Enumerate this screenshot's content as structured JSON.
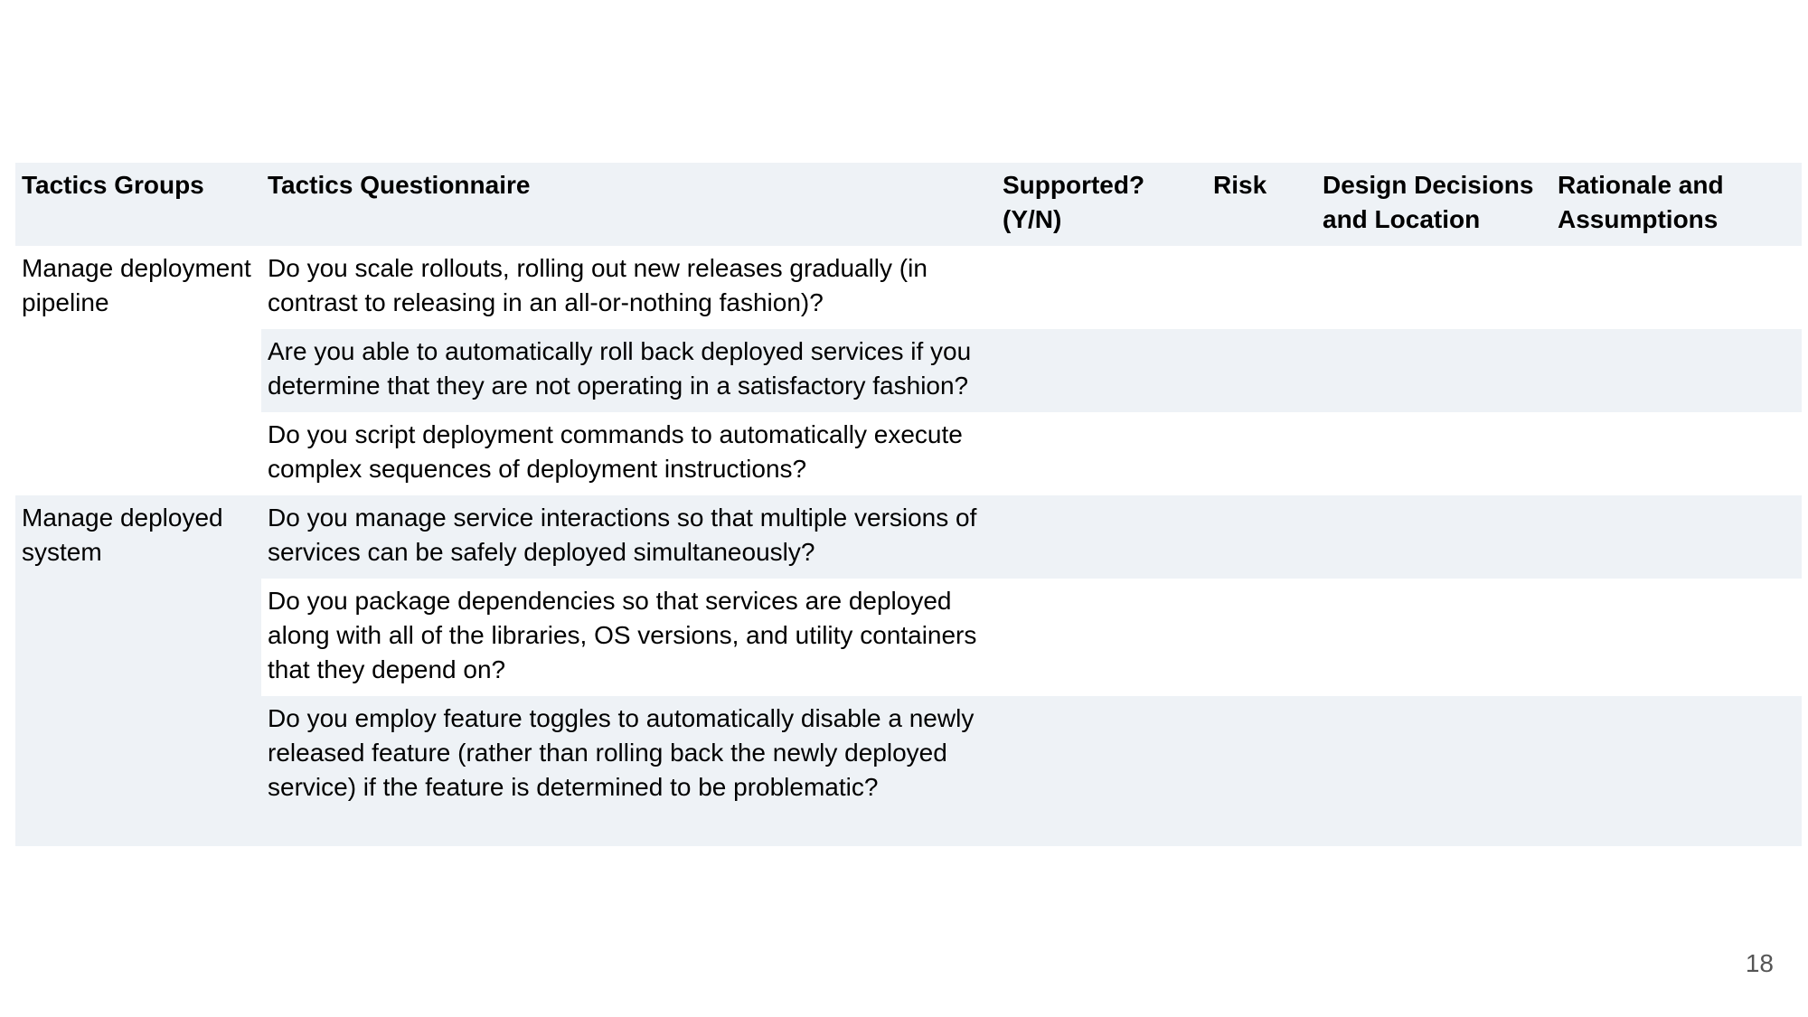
{
  "table": {
    "headers": [
      "Tactics Groups",
      "Tactics Questionnaire",
      "Supported? (Y/N)",
      "Risk",
      "Design Decisions and Location",
      "Rationale and Assumptions"
    ],
    "groups": [
      {
        "name": "Manage deployment pipeline",
        "questions": [
          "Do you scale rollouts, rolling out new releases gradually (in contrast to releasing in an all-or-nothing fashion)?",
          "Are you able to automatically roll back deployed services if you determine that they are not operating in a satisfactory fashion?",
          "Do you script deployment commands to automatically execute complex sequences of deployment instructions?"
        ]
      },
      {
        "name": "Manage deployed system",
        "questions": [
          "Do you manage service interactions so that multiple versions of services can be safely deployed simultaneously?",
          "Do you package dependencies so that services are deployed along with all of the libraries, OS versions, and utility containers that they depend on?",
          "Do you employ feature toggles to automatically disable a newly released feature (rather than rolling back the newly deployed service) if the feature is determined to be problematic?"
        ]
      }
    ]
  },
  "page_number": "18",
  "colors": {
    "shaded_row": "#eef2f6",
    "page_number": "#555555"
  }
}
